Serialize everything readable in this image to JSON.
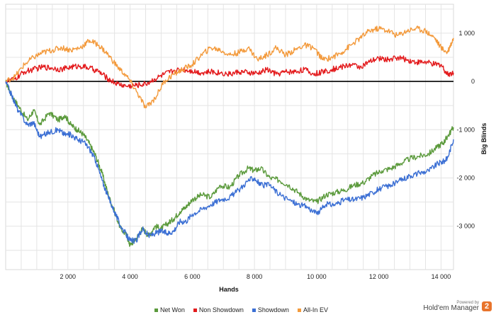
{
  "chart_data": {
    "type": "line",
    "xlabel": "Hands",
    "ylabel": "Big Blinds",
    "xlim": [
      0,
      14400
    ],
    "ylim": [
      -3900,
      1600
    ],
    "x_ticks": [
      2000,
      4000,
      6000,
      8000,
      10000,
      12000,
      14000
    ],
    "x_tick_labels": [
      "2 000",
      "4 000",
      "6 000",
      "8 000",
      "10 000",
      "12 000",
      "14 000"
    ],
    "y_ticks": [
      1000,
      0,
      -1000,
      -2000,
      -3000
    ],
    "y_tick_labels": [
      "1 000",
      "0",
      "-1 000",
      "-2 000",
      "-3 000"
    ],
    "grid": true,
    "legend_position": "bottom",
    "series": [
      {
        "name": "Net Won",
        "color": "#5b9a3c",
        "x": [
          0,
          200,
          400,
          700,
          900,
          1100,
          1400,
          1700,
          1900,
          2100,
          2300,
          2500,
          2700,
          2900,
          3100,
          3300,
          3500,
          3700,
          3900,
          4000,
          4200,
          4400,
          4600,
          4800,
          5000,
          5200,
          5400,
          5600,
          5800,
          6000,
          6300,
          6600,
          6900,
          7200,
          7500,
          7800,
          8000,
          8200,
          8500,
          8800,
          9100,
          9400,
          9700,
          10000,
          10300,
          10600,
          10900,
          11200,
          11500,
          11800,
          12100,
          12400,
          12700,
          13000,
          13300,
          13600,
          13900,
          14100,
          14200,
          14400
        ],
        "values": [
          0,
          -300,
          -500,
          -800,
          -600,
          -900,
          -650,
          -800,
          -700,
          -900,
          -1000,
          -1100,
          -1300,
          -1550,
          -1900,
          -2350,
          -2700,
          -3050,
          -3200,
          -3400,
          -3250,
          -3050,
          -3200,
          -3000,
          -3050,
          -2950,
          -2850,
          -2700,
          -2600,
          -2450,
          -2350,
          -2400,
          -2150,
          -2200,
          -1950,
          -1800,
          -1850,
          -1800,
          -2000,
          -2050,
          -2150,
          -2300,
          -2450,
          -2500,
          -2350,
          -2300,
          -2250,
          -2150,
          -2100,
          -1950,
          -1850,
          -1800,
          -1700,
          -1600,
          -1550,
          -1500,
          -1350,
          -1250,
          -1150,
          -950
        ]
      },
      {
        "name": "Non Showdown",
        "color": "#e31a1c",
        "x": [
          0,
          300,
          600,
          900,
          1200,
          1500,
          1800,
          2100,
          2400,
          2700,
          3000,
          3300,
          3600,
          3900,
          4200,
          4500,
          4800,
          5100,
          5400,
          5700,
          6000,
          6300,
          6600,
          6900,
          7200,
          7500,
          7800,
          8100,
          8400,
          8700,
          9000,
          9300,
          9600,
          9900,
          10200,
          10500,
          10800,
          11100,
          11400,
          11700,
          12000,
          12300,
          12600,
          12900,
          13200,
          13500,
          13800,
          14000,
          14200,
          14400
        ],
        "values": [
          0,
          50,
          200,
          250,
          300,
          280,
          250,
          300,
          320,
          280,
          200,
          50,
          -50,
          -100,
          -80,
          -50,
          50,
          150,
          220,
          250,
          220,
          180,
          200,
          180,
          150,
          200,
          180,
          160,
          250,
          150,
          200,
          200,
          250,
          150,
          200,
          250,
          300,
          350,
          300,
          400,
          480,
          450,
          500,
          450,
          400,
          400,
          350,
          350,
          150,
          180
        ]
      },
      {
        "name": "Showdown",
        "color": "#3b6fd4",
        "x": [
          0,
          200,
          400,
          700,
          900,
          1100,
          1400,
          1700,
          1900,
          2100,
          2300,
          2500,
          2700,
          2900,
          3100,
          3300,
          3500,
          3700,
          3900,
          4000,
          4200,
          4400,
          4600,
          4800,
          5000,
          5200,
          5400,
          5600,
          5800,
          6000,
          6300,
          6600,
          6900,
          7200,
          7500,
          7800,
          8000,
          8200,
          8500,
          8800,
          9100,
          9400,
          9700,
          10000,
          10300,
          10600,
          10900,
          11200,
          11500,
          11800,
          12100,
          12400,
          12700,
          13000,
          13300,
          13600,
          13900,
          14100,
          14200,
          14400
        ],
        "values": [
          0,
          -300,
          -600,
          -900,
          -850,
          -1150,
          -1050,
          -1000,
          -1100,
          -1100,
          -1200,
          -1250,
          -1400,
          -1650,
          -2050,
          -2400,
          -2700,
          -3000,
          -3200,
          -3300,
          -3300,
          -3050,
          -3200,
          -3150,
          -3100,
          -3150,
          -3100,
          -2900,
          -2900,
          -2750,
          -2650,
          -2550,
          -2450,
          -2400,
          -2250,
          -2050,
          -2000,
          -2150,
          -2150,
          -2350,
          -2450,
          -2550,
          -2600,
          -2750,
          -2550,
          -2550,
          -2450,
          -2450,
          -2400,
          -2300,
          -2200,
          -2150,
          -2050,
          -1950,
          -1900,
          -1850,
          -1700,
          -1650,
          -1600,
          -1200
        ]
      },
      {
        "name": "All-In EV",
        "color": "#f39a3c",
        "x": [
          0,
          300,
          600,
          900,
          1200,
          1500,
          1800,
          2100,
          2400,
          2700,
          3000,
          3300,
          3600,
          3900,
          4200,
          4500,
          4800,
          5100,
          5400,
          5700,
          6000,
          6300,
          6600,
          6900,
          7200,
          7500,
          7800,
          8100,
          8400,
          8700,
          9000,
          9300,
          9600,
          9900,
          10200,
          10500,
          10800,
          11100,
          11400,
          11700,
          12000,
          12300,
          12600,
          12900,
          13200,
          13500,
          13800,
          14000,
          14200,
          14400
        ],
        "values": [
          0,
          100,
          350,
          500,
          600,
          650,
          700,
          650,
          700,
          850,
          750,
          550,
          300,
          100,
          -200,
          -550,
          -350,
          0,
          150,
          250,
          350,
          550,
          700,
          650,
          550,
          600,
          700,
          450,
          550,
          700,
          550,
          650,
          750,
          700,
          450,
          500,
          600,
          750,
          900,
          1050,
          1100,
          1050,
          950,
          1050,
          1100,
          1050,
          900,
          700,
          600,
          900
        ]
      }
    ]
  },
  "branding": {
    "powered_by": "Powered by",
    "name": "Hold'em Manager",
    "logo_text": "2",
    "logo_color": "#e8742c"
  }
}
